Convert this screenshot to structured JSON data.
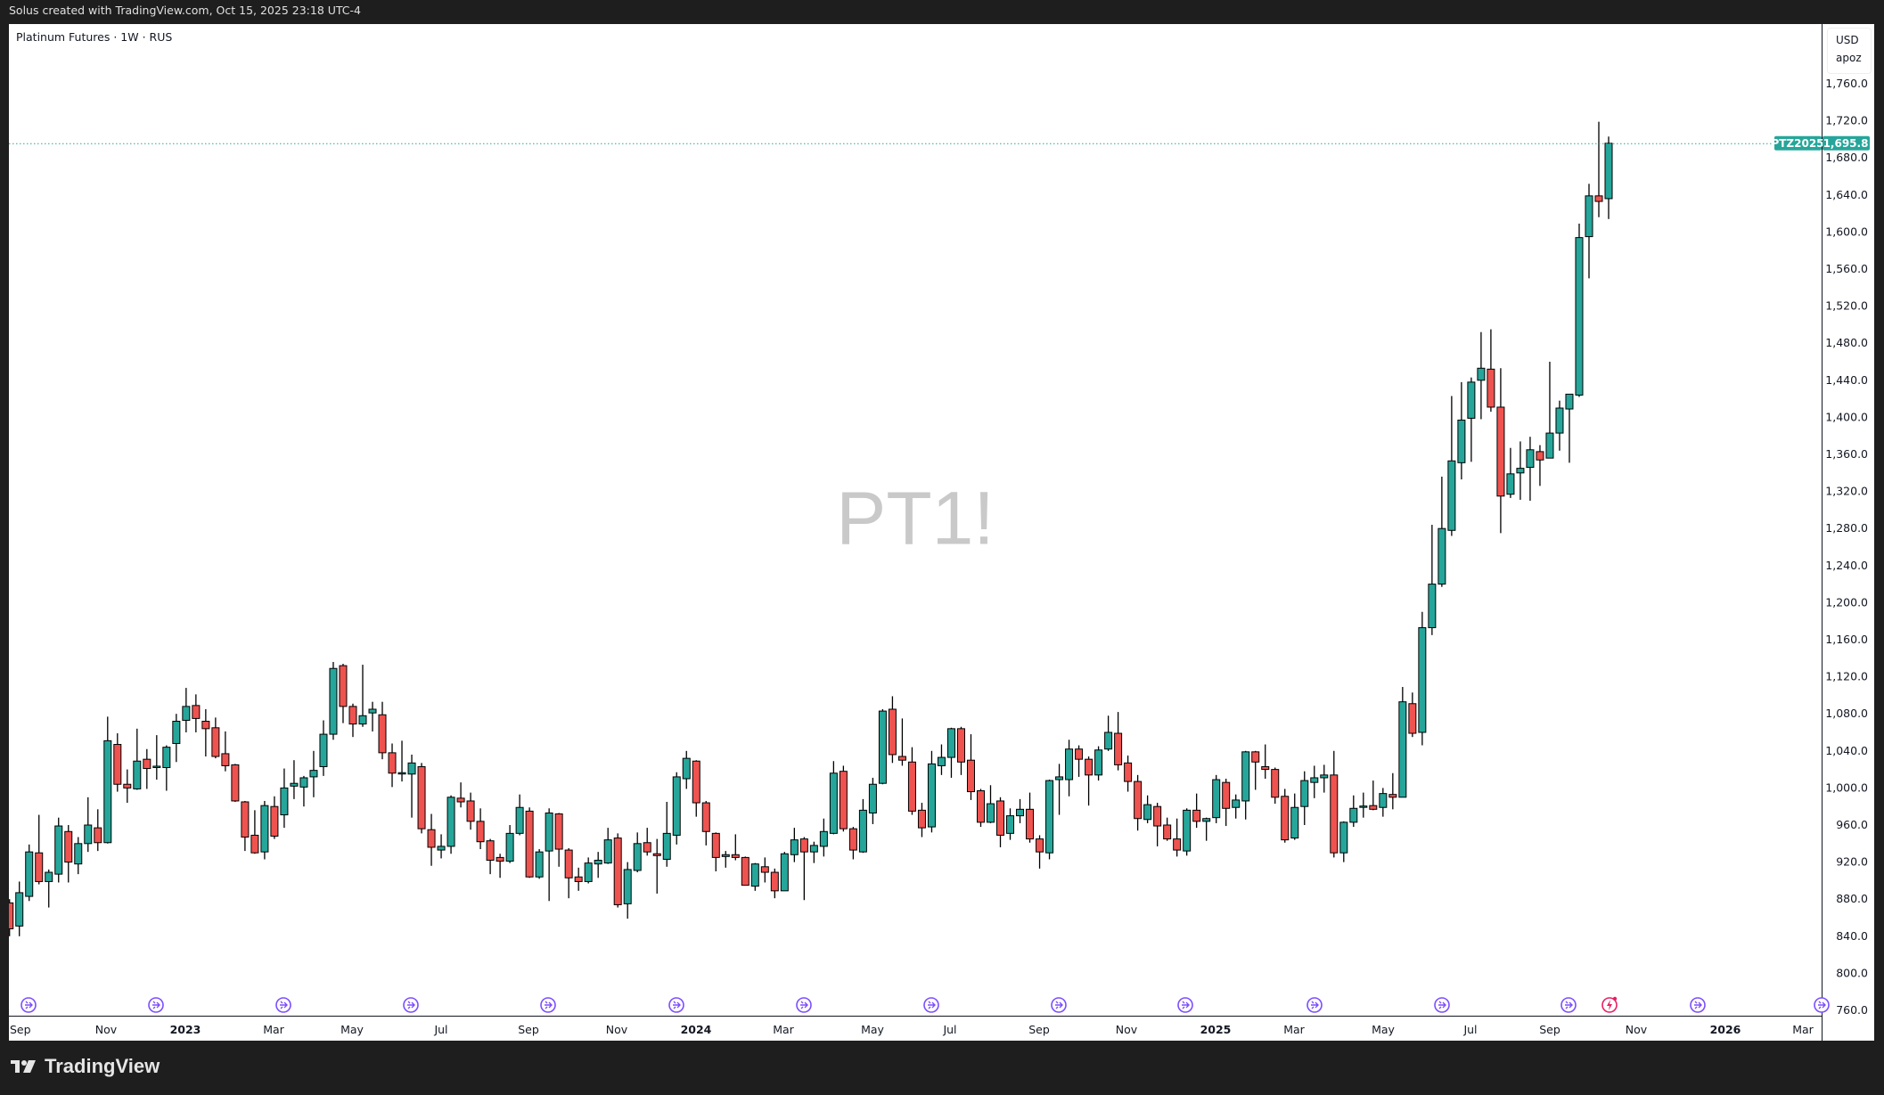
{
  "header": {
    "caption": "Solus created with TradingView.com, Oct 15, 2025 23:18 UTC-4"
  },
  "legend": {
    "symbol_line": "Platinum Futures · 1W · RUS"
  },
  "watermark": "PT1!",
  "price_axis": {
    "currency": "USD",
    "unit": "apoz"
  },
  "last_price": {
    "contract": "PTZ2025",
    "value": "1,695.8",
    "color": "#26a69a"
  },
  "footer": {
    "brand": "TradingView"
  },
  "colors": {
    "up": "#26a69a",
    "down": "#ef5350",
    "wick": "#000000",
    "event": "#7c4dff",
    "event_alert": "#e91e63"
  },
  "chart_data": {
    "type": "candlestick",
    "title": "Platinum Futures · 1W · RUS",
    "interval": "1W",
    "ylim": [
      740,
      1780
    ],
    "y_ticks": [
      "760.0",
      "800.0",
      "840.0",
      "880.0",
      "920.0",
      "960.0",
      "1,000.0",
      "1,040.0",
      "1,080.0",
      "1,120.0",
      "1,160.0",
      "1,200.0",
      "1,240.0",
      "1,280.0",
      "1,320.0",
      "1,360.0",
      "1,400.0",
      "1,440.0",
      "1,480.0",
      "1,520.0",
      "1,560.0",
      "1,600.0",
      "1,640.0",
      "1,680.0",
      "1,720.0",
      "1,760.0"
    ],
    "x_ticks": [
      "Sep",
      "Nov",
      "2023",
      "Mar",
      "May",
      "Jul",
      "Sep",
      "Nov",
      "2024",
      "Mar",
      "May",
      "Jul",
      "Sep",
      "Nov",
      "2025",
      "Mar",
      "May",
      "Jul",
      "Sep",
      "Nov",
      "2026",
      "Mar"
    ],
    "grid": false,
    "ohlc_fields": [
      "open",
      "high",
      "low",
      "close"
    ],
    "ohlc": [
      [
        876,
        880,
        840,
        848
      ],
      [
        851,
        899,
        840,
        887
      ],
      [
        883,
        939,
        878,
        931
      ],
      [
        930,
        971,
        896,
        899
      ],
      [
        899,
        912,
        871,
        909
      ],
      [
        907,
        968,
        898,
        959
      ],
      [
        953,
        960,
        898,
        920
      ],
      [
        918,
        947,
        907,
        940
      ],
      [
        940,
        990,
        931,
        960
      ],
      [
        957,
        977,
        932,
        941
      ],
      [
        941,
        1077,
        940,
        1051
      ],
      [
        1047,
        1059,
        996,
        1004
      ],
      [
        1004,
        1020,
        984,
        1000
      ],
      [
        999,
        1064,
        998,
        1029
      ],
      [
        1031,
        1042,
        999,
        1021
      ],
      [
        1023,
        1057,
        1009,
        1023.5
      ],
      [
        1022,
        1046,
        997,
        1044
      ],
      [
        1048,
        1080,
        1028,
        1072
      ],
      [
        1073,
        1108,
        1060,
        1088
      ],
      [
        1089,
        1101,
        1060,
        1075
      ],
      [
        1072,
        1085,
        1034,
        1064
      ],
      [
        1065,
        1076,
        1032,
        1034
      ],
      [
        1037,
        1061,
        1018,
        1024
      ],
      [
        1025,
        1026,
        985,
        986
      ],
      [
        985,
        986,
        932,
        947
      ],
      [
        949,
        976,
        929,
        930
      ],
      [
        931,
        986,
        923,
        981
      ],
      [
        980,
        991,
        945,
        948
      ],
      [
        971,
        1021,
        957,
        1000
      ],
      [
        1002,
        1030,
        988,
        1005
      ],
      [
        1001,
        1013,
        980,
        1011
      ],
      [
        1012,
        1040,
        990,
        1019
      ],
      [
        1023,
        1073,
        1013,
        1058
      ],
      [
        1058,
        1136,
        1052,
        1129
      ],
      [
        1132,
        1134,
        1070,
        1088
      ],
      [
        1088,
        1091,
        1055,
        1069
      ],
      [
        1069,
        1133,
        1066,
        1078
      ],
      [
        1081,
        1093,
        1061,
        1085
      ],
      [
        1079,
        1093,
        1031,
        1038
      ],
      [
        1038,
        1048,
        1001,
        1016
      ],
      [
        1016,
        1051,
        1007,
        1016.5
      ],
      [
        1015,
        1036,
        968,
        1027
      ],
      [
        1023,
        1027,
        951,
        956
      ],
      [
        955,
        972,
        916,
        936
      ],
      [
        933,
        950,
        924,
        937
      ],
      [
        937,
        992,
        929,
        990
      ],
      [
        989,
        1006,
        979,
        985
      ],
      [
        986,
        995,
        955,
        964
      ],
      [
        964,
        978,
        934,
        942
      ],
      [
        943,
        945,
        907,
        922
      ],
      [
        925,
        929,
        903,
        921
      ],
      [
        921,
        960,
        919,
        951
      ],
      [
        951,
        993,
        949,
        979
      ],
      [
        975,
        979,
        903,
        904
      ],
      [
        904,
        934,
        902,
        931
      ],
      [
        932,
        978,
        878,
        973
      ],
      [
        972,
        973,
        915,
        934
      ],
      [
        933,
        935,
        881,
        903
      ],
      [
        904,
        914,
        889,
        899
      ],
      [
        899,
        925,
        897,
        919
      ],
      [
        918,
        931,
        903,
        922
      ],
      [
        919,
        957,
        918,
        944
      ],
      [
        946,
        951,
        871,
        874
      ],
      [
        875,
        920,
        859,
        912
      ],
      [
        911,
        952,
        909,
        940
      ],
      [
        941,
        957,
        927,
        931
      ],
      [
        929,
        945,
        886,
        927
      ],
      [
        923,
        985,
        915,
        951
      ],
      [
        949,
        1017,
        939,
        1012
      ],
      [
        1010,
        1040,
        999,
        1032
      ],
      [
        1029,
        1030,
        969,
        984
      ],
      [
        984,
        986,
        938,
        953
      ],
      [
        951,
        952,
        910,
        925
      ],
      [
        926,
        932,
        914,
        928
      ],
      [
        928,
        950,
        922,
        925
      ],
      [
        925,
        926,
        895,
        895
      ],
      [
        894,
        919,
        889,
        918
      ],
      [
        915,
        925,
        898,
        909
      ],
      [
        909,
        913,
        881,
        889
      ],
      [
        889,
        931,
        889,
        929
      ],
      [
        928,
        957,
        920,
        944
      ],
      [
        945,
        947,
        879,
        931
      ],
      [
        931,
        942,
        919,
        938
      ],
      [
        937,
        967,
        926,
        953
      ],
      [
        951,
        1029,
        950,
        1016
      ],
      [
        1018,
        1024,
        953,
        956
      ],
      [
        956,
        958,
        923,
        933
      ],
      [
        931,
        988,
        930,
        976
      ],
      [
        973,
        1011,
        961,
        1004
      ],
      [
        1005,
        1085,
        1004,
        1083
      ],
      [
        1085,
        1099,
        1027,
        1036
      ],
      [
        1034,
        1075,
        1024,
        1030
      ],
      [
        1028,
        1044,
        971,
        975
      ],
      [
        976,
        984,
        947,
        957
      ],
      [
        958,
        1040,
        952,
        1026
      ],
      [
        1024,
        1047,
        1014,
        1033
      ],
      [
        1033,
        1065,
        1011,
        1064
      ],
      [
        1064,
        1066,
        1014,
        1028
      ],
      [
        1030,
        1058,
        987,
        996
      ],
      [
        997,
        999,
        958,
        963
      ],
      [
        963,
        1003,
        962,
        983
      ],
      [
        986,
        990,
        936,
        949
      ],
      [
        951,
        978,
        944,
        970
      ],
      [
        970,
        988,
        962,
        977
      ],
      [
        977,
        995,
        941,
        945
      ],
      [
        945,
        949,
        913,
        931
      ],
      [
        930,
        1009,
        923,
        1008
      ],
      [
        1009,
        1026,
        971,
        1012
      ],
      [
        1009,
        1052,
        991,
        1042
      ],
      [
        1042,
        1046,
        1012,
        1031
      ],
      [
        1031,
        1034,
        981,
        1014
      ],
      [
        1014,
        1045,
        1008,
        1041
      ],
      [
        1042,
        1078,
        1040,
        1060
      ],
      [
        1059,
        1082,
        1019,
        1025
      ],
      [
        1027,
        1035,
        996,
        1007
      ],
      [
        1007,
        1014,
        954,
        967
      ],
      [
        966,
        992,
        962,
        982
      ],
      [
        980,
        984,
        937,
        959
      ],
      [
        960,
        968,
        943,
        945
      ],
      [
        945,
        967,
        926,
        933
      ],
      [
        932,
        978,
        927,
        976
      ],
      [
        976,
        994,
        957,
        964
      ],
      [
        964,
        968,
        943,
        967
      ],
      [
        968,
        1014,
        962,
        1009
      ],
      [
        1006,
        1010,
        959,
        978
      ],
      [
        979,
        993,
        967,
        987
      ],
      [
        986,
        1040,
        966,
        1039
      ],
      [
        1039,
        1040,
        998,
        1028
      ],
      [
        1023,
        1047,
        1010,
        1020
      ],
      [
        1020,
        1022,
        983,
        990
      ],
      [
        991,
        999,
        941,
        944
      ],
      [
        946,
        994,
        944,
        979
      ],
      [
        980,
        1018,
        960,
        1008
      ],
      [
        1006,
        1024,
        989,
        1011
      ],
      [
        1011,
        1025,
        995,
        1014
      ],
      [
        1014,
        1040,
        925,
        930
      ],
      [
        930,
        964,
        920,
        963
      ],
      [
        963,
        992,
        958,
        978
      ],
      [
        980,
        995,
        968,
        980.5
      ],
      [
        981,
        1008,
        976,
        977
      ],
      [
        979,
        1000,
        969,
        994
      ],
      [
        993,
        1016,
        977,
        990
      ],
      [
        990,
        1109,
        990,
        1093
      ],
      [
        1091,
        1103,
        1055,
        1059
      ],
      [
        1060,
        1190,
        1046,
        1173
      ],
      [
        1173,
        1284,
        1165,
        1220
      ],
      [
        1220,
        1336,
        1217,
        1280
      ],
      [
        1278,
        1423,
        1272,
        1353
      ],
      [
        1351,
        1438,
        1333,
        1397
      ],
      [
        1399,
        1443,
        1352,
        1438
      ],
      [
        1440,
        1492,
        1398,
        1453
      ],
      [
        1452,
        1495,
        1406,
        1411
      ],
      [
        1411,
        1453,
        1275,
        1315
      ],
      [
        1317,
        1367,
        1313,
        1339
      ],
      [
        1340,
        1374,
        1311,
        1345
      ],
      [
        1346,
        1379,
        1310,
        1365
      ],
      [
        1363,
        1370,
        1326,
        1354
      ],
      [
        1356,
        1460,
        1356,
        1383
      ],
      [
        1383,
        1418,
        1364,
        1410
      ],
      [
        1409,
        1425,
        1351,
        1425
      ],
      [
        1424,
        1609,
        1422,
        1594
      ],
      [
        1595,
        1652,
        1550,
        1639
      ],
      [
        1639,
        1719,
        1616,
        1633
      ],
      [
        1636,
        1703,
        1614,
        1695.8
      ]
    ],
    "last_close": 1695.8
  }
}
